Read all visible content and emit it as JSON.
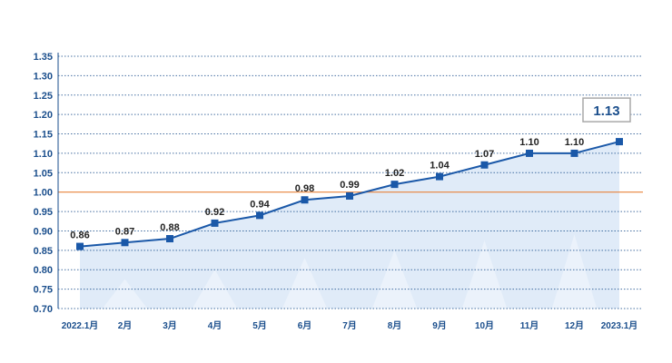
{
  "chart_data": {
    "type": "line",
    "categories": [
      "2022.1月",
      "2月",
      "3月",
      "4月",
      "5月",
      "6月",
      "7月",
      "8月",
      "9月",
      "10月",
      "11月",
      "12月",
      "2023.1月"
    ],
    "values": [
      0.86,
      0.87,
      0.88,
      0.92,
      0.94,
      0.98,
      0.99,
      1.02,
      1.04,
      1.07,
      1.1,
      1.1,
      1.13
    ],
    "data_labels": [
      "0.86",
      "0.87",
      "0.88",
      "0.92",
      "0.94",
      "0.98",
      "0.99",
      "1.02",
      "1.04",
      "1.07",
      "1.10",
      "1.10",
      ""
    ],
    "y_ticks": [
      "0.70",
      "0.75",
      "0.80",
      "0.85",
      "0.90",
      "0.95",
      "1.00",
      "1.05",
      "1.10",
      "1.15",
      "1.20",
      "1.25",
      "1.30",
      "1.35"
    ],
    "ylim": [
      0.7,
      1.35
    ],
    "reference_line": 1.0,
    "highlight_label": "1.13",
    "title": "",
    "xlabel": "",
    "ylabel": "",
    "grid": "horizontal dotted",
    "legend": "none",
    "colors": {
      "line": "#1a58a8",
      "marker": "#1a58a8",
      "reference": "#e8823a",
      "grid": "#1a4e8c",
      "area": "#dbe8f7",
      "callout_border": "#a8a8a8"
    }
  }
}
